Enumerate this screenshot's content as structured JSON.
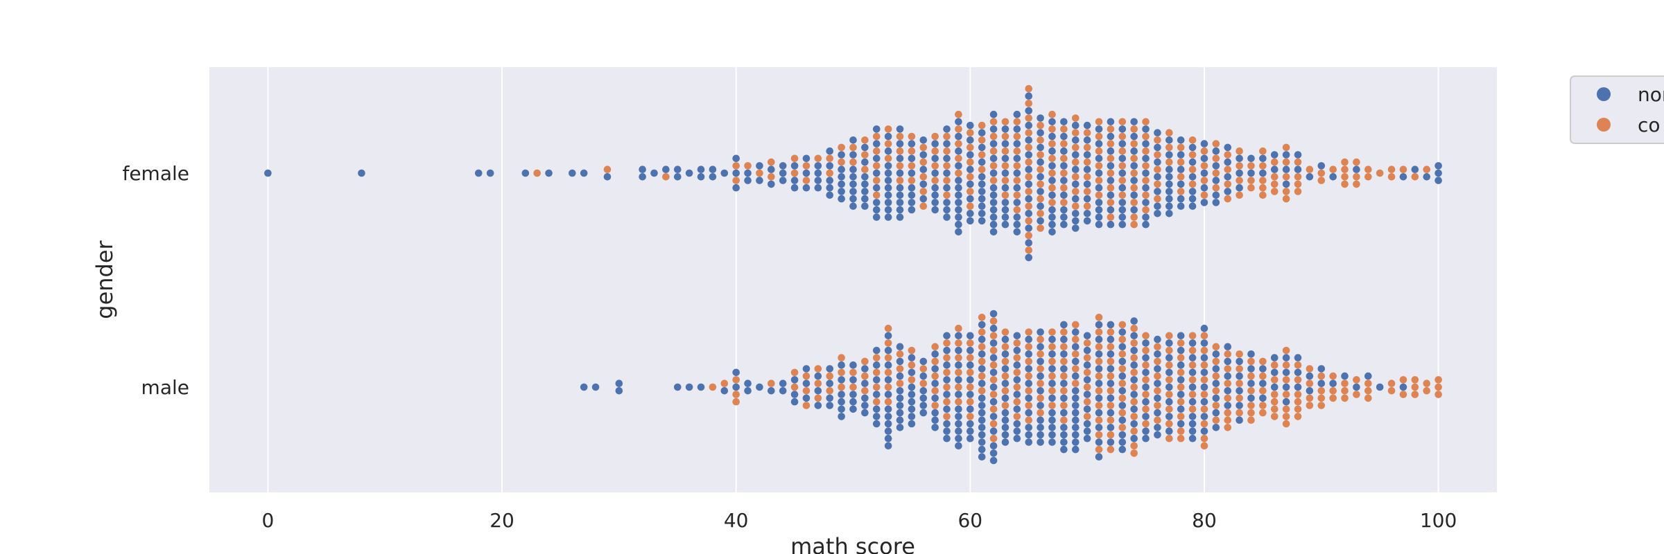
{
  "chart_data": {
    "type": "scatter",
    "subtype": "swarm",
    "orientation": "horizontal",
    "xlabel": "math score",
    "ylabel": "gender",
    "xlim": [
      -5,
      105
    ],
    "xticks": [
      "0",
      "20",
      "40",
      "60",
      "80",
      "100"
    ],
    "categories": [
      "female",
      "male"
    ],
    "grid": true,
    "background": "#eaeaf2",
    "legend": {
      "position": "top-right (outside plot, clipped)",
      "entries": [
        "nor",
        "co"
      ]
    },
    "series": [
      {
        "name": "nor",
        "color": "#4c72b0",
        "points": {
          "female": [
            [
              0,
              1
            ],
            [
              8,
              1
            ],
            [
              18,
              1
            ],
            [
              19,
              1
            ],
            [
              22,
              1
            ],
            [
              24,
              1
            ],
            [
              26,
              1
            ],
            [
              27,
              1
            ],
            [
              29,
              1
            ],
            [
              32,
              2
            ],
            [
              33,
              1
            ],
            [
              34,
              1
            ],
            [
              35,
              2
            ],
            [
              36,
              1
            ],
            [
              37,
              2
            ],
            [
              38,
              2
            ],
            [
              39,
              1
            ],
            [
              40,
              3
            ],
            [
              41,
              2
            ],
            [
              42,
              2
            ],
            [
              43,
              2
            ],
            [
              44,
              3
            ],
            [
              45,
              3
            ],
            [
              46,
              3
            ],
            [
              47,
              4
            ],
            [
              48,
              5
            ],
            [
              49,
              6
            ],
            [
              50,
              8
            ],
            [
              51,
              7
            ],
            [
              52,
              8
            ],
            [
              53,
              10
            ],
            [
              54,
              9
            ],
            [
              55,
              7
            ],
            [
              56,
              5
            ],
            [
              57,
              7
            ],
            [
              58,
              8
            ],
            [
              59,
              12
            ],
            [
              60,
              8
            ],
            [
              61,
              10
            ],
            [
              62,
              12
            ],
            [
              63,
              9
            ],
            [
              64,
              10
            ],
            [
              65,
              12
            ],
            [
              66,
              8
            ],
            [
              67,
              10
            ],
            [
              68,
              9
            ],
            [
              69,
              9
            ],
            [
              70,
              8
            ],
            [
              71,
              9
            ],
            [
              72,
              8
            ],
            [
              73,
              9
            ],
            [
              74,
              7
            ],
            [
              75,
              8
            ],
            [
              76,
              7
            ],
            [
              77,
              9
            ],
            [
              78,
              6
            ],
            [
              79,
              6
            ],
            [
              80,
              5
            ],
            [
              81,
              5
            ],
            [
              82,
              4
            ],
            [
              83,
              3
            ],
            [
              84,
              2
            ],
            [
              85,
              2
            ],
            [
              86,
              2
            ],
            [
              87,
              3
            ],
            [
              88,
              2
            ],
            [
              89,
              1
            ],
            [
              90,
              1
            ],
            [
              91,
              1
            ],
            [
              93,
              1
            ],
            [
              97,
              1
            ],
            [
              98,
              1
            ],
            [
              99,
              1
            ],
            [
              100,
              3
            ]
          ],
          "male": [
            [
              27,
              1
            ],
            [
              28,
              1
            ],
            [
              30,
              2
            ],
            [
              35,
              1
            ],
            [
              36,
              1
            ],
            [
              37,
              1
            ],
            [
              39,
              1
            ],
            [
              40,
              2
            ],
            [
              41,
              2
            ],
            [
              42,
              1
            ],
            [
              43,
              1
            ],
            [
              44,
              2
            ],
            [
              45,
              3
            ],
            [
              46,
              3
            ],
            [
              47,
              3
            ],
            [
              48,
              4
            ],
            [
              49,
              6
            ],
            [
              50,
              5
            ],
            [
              51,
              5
            ],
            [
              52,
              7
            ],
            [
              53,
              11
            ],
            [
              54,
              9
            ],
            [
              55,
              8
            ],
            [
              56,
              6
            ],
            [
              57,
              7
            ],
            [
              58,
              9
            ],
            [
              59,
              11
            ],
            [
              60,
              9
            ],
            [
              61,
              14
            ],
            [
              62,
              12
            ],
            [
              63,
              10
            ],
            [
              64,
              9
            ],
            [
              65,
              9
            ],
            [
              66,
              10
            ],
            [
              67,
              10
            ],
            [
              68,
              11
            ],
            [
              69,
              13
            ],
            [
              70,
              9
            ],
            [
              71,
              10
            ],
            [
              72,
              9
            ],
            [
              73,
              10
            ],
            [
              74,
              9
            ],
            [
              75,
              8
            ],
            [
              76,
              8
            ],
            [
              77,
              7
            ],
            [
              78,
              7
            ],
            [
              79,
              9
            ],
            [
              80,
              8
            ],
            [
              81,
              6
            ],
            [
              82,
              5
            ],
            [
              83,
              5
            ],
            [
              84,
              4
            ],
            [
              85,
              3
            ],
            [
              86,
              3
            ],
            [
              87,
              4
            ],
            [
              88,
              3
            ],
            [
              89,
              2
            ],
            [
              90,
              2
            ],
            [
              91,
              1
            ],
            [
              92,
              1
            ],
            [
              93,
              1
            ],
            [
              94,
              1
            ],
            [
              95,
              1
            ],
            [
              97,
              1
            ]
          ]
        }
      },
      {
        "name": "co",
        "color": "#dd8452",
        "points": {
          "female": [
            [
              23,
              1
            ],
            [
              29,
              1
            ],
            [
              34,
              1
            ],
            [
              40,
              2
            ],
            [
              41,
              1
            ],
            [
              42,
              1
            ],
            [
              43,
              2
            ],
            [
              45,
              2
            ],
            [
              46,
              2
            ],
            [
              47,
              1
            ],
            [
              48,
              2
            ],
            [
              49,
              2
            ],
            [
              50,
              2
            ],
            [
              51,
              3
            ],
            [
              52,
              5
            ],
            [
              53,
              3
            ],
            [
              54,
              4
            ],
            [
              55,
              4
            ],
            [
              56,
              5
            ],
            [
              57,
              4
            ],
            [
              58,
              5
            ],
            [
              59,
              5
            ],
            [
              60,
              6
            ],
            [
              61,
              4
            ],
            [
              62,
              5
            ],
            [
              63,
              6
            ],
            [
              64,
              7
            ],
            [
              65,
              12
            ],
            [
              66,
              8
            ],
            [
              67,
              7
            ],
            [
              68,
              6
            ],
            [
              69,
              7
            ],
            [
              70,
              6
            ],
            [
              71,
              6
            ],
            [
              72,
              7
            ],
            [
              73,
              6
            ],
            [
              74,
              8
            ],
            [
              75,
              7
            ],
            [
              76,
              5
            ],
            [
              77,
              3
            ],
            [
              78,
              4
            ],
            [
              79,
              4
            ],
            [
              80,
              4
            ],
            [
              81,
              4
            ],
            [
              82,
              4
            ],
            [
              83,
              4
            ],
            [
              84,
              3
            ],
            [
              85,
              5
            ],
            [
              86,
              4
            ],
            [
              87,
              5
            ],
            [
              88,
              4
            ],
            [
              89,
              1
            ],
            [
              90,
              2
            ],
            [
              91,
              1
            ],
            [
              92,
              4
            ],
            [
              93,
              3
            ],
            [
              94,
              2
            ],
            [
              95,
              1
            ],
            [
              96,
              2
            ],
            [
              97,
              1
            ],
            [
              98,
              1
            ],
            [
              99,
              1
            ]
          ],
          "male": [
            [
              38,
              1
            ],
            [
              39,
              1
            ],
            [
              40,
              3
            ],
            [
              43,
              1
            ],
            [
              45,
              2
            ],
            [
              46,
              3
            ],
            [
              47,
              3
            ],
            [
              48,
              2
            ],
            [
              49,
              3
            ],
            [
              50,
              2
            ],
            [
              51,
              3
            ],
            [
              52,
              4
            ],
            [
              53,
              6
            ],
            [
              54,
              3
            ],
            [
              55,
              3
            ],
            [
              56,
              2
            ],
            [
              57,
              5
            ],
            [
              58,
              6
            ],
            [
              59,
              6
            ],
            [
              60,
              6
            ],
            [
              61,
              6
            ],
            [
              62,
              9
            ],
            [
              63,
              6
            ],
            [
              64,
              6
            ],
            [
              65,
              7
            ],
            [
              66,
              6
            ],
            [
              67,
              6
            ],
            [
              68,
              7
            ],
            [
              69,
              5
            ],
            [
              70,
              6
            ],
            [
              71,
              10
            ],
            [
              72,
              9
            ],
            [
              73,
              8
            ],
            [
              74,
              10
            ],
            [
              75,
              7
            ],
            [
              76,
              6
            ],
            [
              77,
              8
            ],
            [
              78,
              8
            ],
            [
              79,
              6
            ],
            [
              80,
              9
            ],
            [
              81,
              6
            ],
            [
              82,
              7
            ],
            [
              83,
              5
            ],
            [
              84,
              6
            ],
            [
              85,
              5
            ],
            [
              86,
              6
            ],
            [
              87,
              7
            ],
            [
              88,
              6
            ],
            [
              89,
              4
            ],
            [
              90,
              4
            ],
            [
              91,
              3
            ],
            [
              92,
              3
            ],
            [
              93,
              2
            ],
            [
              94,
              3
            ],
            [
              96,
              2
            ],
            [
              97,
              2
            ],
            [
              98,
              3
            ],
            [
              99,
              2
            ],
            [
              100,
              3
            ]
          ]
        }
      }
    ]
  }
}
